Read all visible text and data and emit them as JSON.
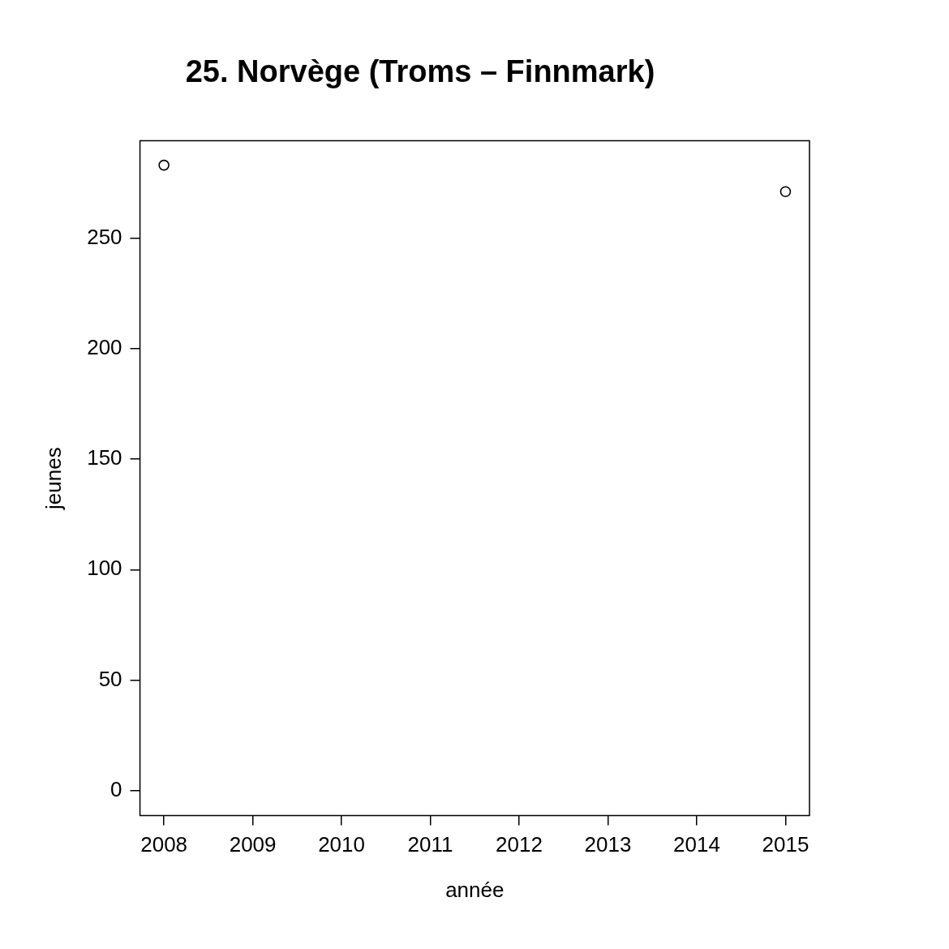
{
  "chart_data": {
    "type": "scatter",
    "title": "25. Norvège (Troms – Finnmark)",
    "xlabel": "année",
    "ylabel": "jeunes",
    "x": [
      2008,
      2015
    ],
    "series": [
      {
        "color": "#000000",
        "values": [
          283,
          271
        ]
      }
    ],
    "xlim": [
      2007.73,
      2015.27
    ],
    "xticks": [
      2008,
      2009,
      2010,
      2011,
      2012,
      2013,
      2014,
      2015
    ],
    "ylim": [
      -11.3,
      294
    ],
    "yticks": [
      0,
      50,
      100,
      150,
      200,
      250
    ],
    "grid": false,
    "legend": false,
    "marker": "circle"
  }
}
